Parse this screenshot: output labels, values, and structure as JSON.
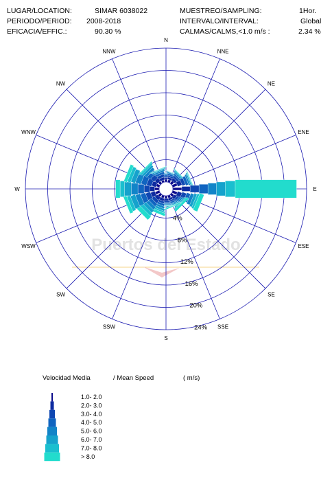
{
  "header": {
    "location_label": "LUGAR/LOCATION:",
    "location_value": "SIMAR 6038022",
    "period_label": "PERIODO/PERIOD:",
    "period_value": "2008-2018",
    "efficacy_label": "EFICACIA/EFFIC.:",
    "efficacy_value": "90.30 %",
    "sampling_label": "MUESTREO/SAMPLING:",
    "sampling_value": "1Hor.",
    "interval_label": "INTERVALO/INTERVAL:",
    "interval_value": "Global",
    "calms_label": "CALMAS/CALMS,<1.0 m/s  :",
    "calms_value": "2.34 %"
  },
  "watermark": "Puertos del Estado",
  "colors": {
    "grid": "#1a1ab0",
    "speed_bins": [
      "#0a0a8c",
      "#0d2aa0",
      "#0f47b2",
      "#1064c0",
      "#1284c8",
      "#15a2cc",
      "#1abfcf",
      "#22dccd"
    ]
  },
  "chart_data": {
    "type": "wind-rose",
    "directions": [
      "N",
      "NNE",
      "NE",
      "ENE",
      "E",
      "ESE",
      "SE",
      "SSE",
      "S",
      "SSW",
      "SW",
      "WSW",
      "W",
      "WNW",
      "NW",
      "NNW"
    ],
    "ring_values": [
      4,
      8,
      12,
      16,
      20,
      24
    ],
    "ring_labels": [
      "4%",
      "8%",
      "12%",
      "16%",
      "20%",
      "24%"
    ],
    "speed_bins": [
      "1.0- 2.0",
      "2.0- 3.0",
      "3.0- 4.0",
      "4.0- 5.0",
      "5.0- 6.0",
      "6.0- 7.0",
      "7.0- 8.0",
      "> 8.0"
    ],
    "legend_title": "Velocidad Media",
    "legend_title_en": "/ Mean Speed",
    "legend_units": "( m/s)",
    "frequencies_percent": [
      [
        0.5,
        0.3,
        0.3,
        0.2,
        0.2,
        0.1,
        0.05,
        0.05
      ],
      [
        0.5,
        0.4,
        0.3,
        0.3,
        0.2,
        0.1,
        0.05,
        0.05
      ],
      [
        0.6,
        0.5,
        0.4,
        0.3,
        0.2,
        0.2,
        0.1,
        0.1
      ],
      [
        0.9,
        0.8,
        0.6,
        0.5,
        0.3,
        0.2,
        0.1,
        0.1
      ],
      [
        1.6,
        1.5,
        1.6,
        1.6,
        1.5,
        1.6,
        1.8,
        11.0
      ],
      [
        0.9,
        0.8,
        0.8,
        0.7,
        0.6,
        0.5,
        0.4,
        0.8
      ],
      [
        0.6,
        0.5,
        0.4,
        0.3,
        0.3,
        0.2,
        0.2,
        0.4
      ],
      [
        0.5,
        0.4,
        0.3,
        0.3,
        0.2,
        0.2,
        0.1,
        0.2
      ],
      [
        0.5,
        0.4,
        0.3,
        0.2,
        0.2,
        0.1,
        0.05,
        0.1
      ],
      [
        0.5,
        0.5,
        0.4,
        0.4,
        0.4,
        0.4,
        0.3,
        0.5
      ],
      [
        0.6,
        0.6,
        0.6,
        0.6,
        0.6,
        0.6,
        0.6,
        0.8
      ],
      [
        0.8,
        0.8,
        0.9,
        0.9,
        0.9,
        0.9,
        0.6,
        0.6
      ],
      [
        0.8,
        0.9,
        1.0,
        1.1,
        1.2,
        1.2,
        0.8,
        0.8
      ],
      [
        0.6,
        0.8,
        0.9,
        1.0,
        1.0,
        0.8,
        0.6,
        0.6
      ],
      [
        0.5,
        0.7,
        0.8,
        0.7,
        0.5,
        0.4,
        0.3,
        0.2
      ],
      [
        0.4,
        0.5,
        0.5,
        0.4,
        0.3,
        0.2,
        0.1,
        0.1
      ]
    ]
  }
}
